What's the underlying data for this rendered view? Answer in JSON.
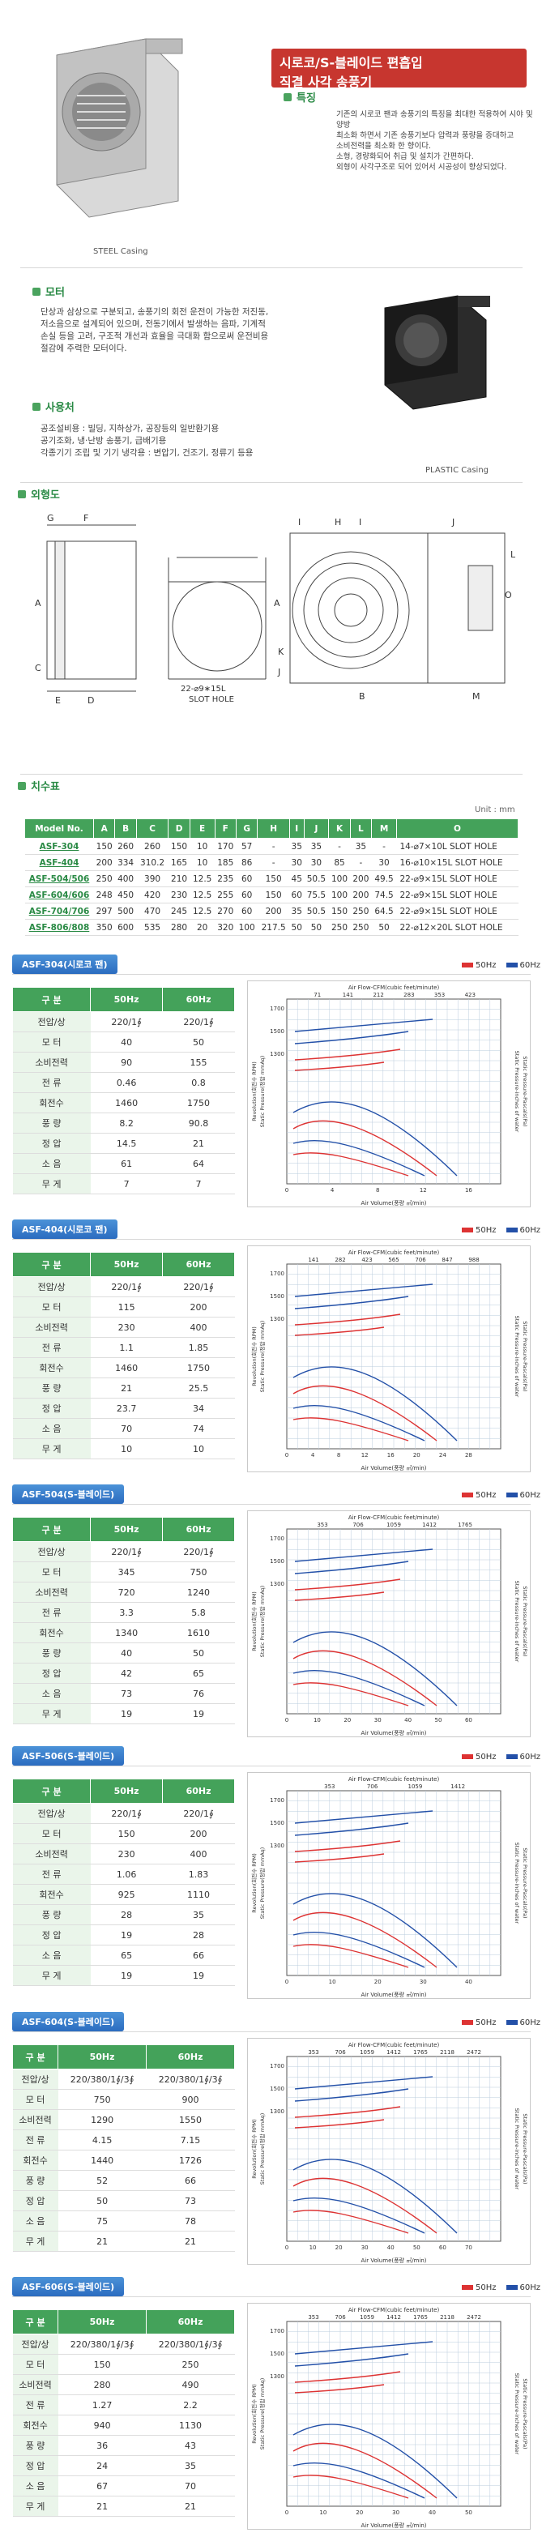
{
  "hero": {
    "title_line1": "시로코/S-블레이드 편흡입",
    "title_line2": "직결 사각 송풍기",
    "feature_head": "특징",
    "feature_text": [
      "기존의 시로코 팬과 송풍기의 특징을 최대한 적용하여 시야 및 양방",
      "최소화 하면서 기존 송풍기보다 압력과 풍량을 증대하고",
      "소비전력을 최소화 한 향이다.",
      "",
      "소형, 경량화되어 취급 및 설치가 간편하다.",
      "외형이 사각구조로 되어 있어서 시공성이 향상되었다."
    ],
    "steel_caption": "STEEL Casing",
    "plastic_caption": "PLASTIC Casing"
  },
  "motor": {
    "head": "모터",
    "text": [
      "단상과 삼상으로 구분되고, 송풍기의 회전 운전이 가능한 저진동,",
      "저소음으로 설계되어 있으며, 전동기에서 발생하는 음파, 기계적",
      "손실 등을 고려, 구조적 개선과 효율을 극대화 함으로써 운전비용",
      "절감에 주력한 모터이다."
    ]
  },
  "usage": {
    "head": "사용처",
    "text": [
      "공조설비용 : 빌딩, 지하상가, 공장등의 일반환기용",
      "공기조화, 냉·난방 송풍기, 급배기용",
      "각종기기 조립 및 기기 냉각용 : 변압기, 건조기, 정류기 등용"
    ]
  },
  "drawing": {
    "head": "외형도",
    "slot_label_line1": "22-⌀9∗15L",
    "slot_label_line2": "SLOT HOLE"
  },
  "dimensions": {
    "head": "치수표",
    "unit": "Unit : mm",
    "columns": [
      "Model No.",
      "A",
      "B",
      "C",
      "D",
      "E",
      "F",
      "G",
      "H",
      "I",
      "J",
      "K",
      "L",
      "M",
      "O"
    ],
    "rows": [
      [
        "ASF-304",
        "150",
        "260",
        "260",
        "150",
        "10",
        "170",
        "57",
        "-",
        "35",
        "35",
        "-",
        "35",
        "-",
        "14-⌀7×10L SLOT HOLE"
      ],
      [
        "ASF-404",
        "200",
        "334",
        "310.2",
        "165",
        "10",
        "185",
        "86",
        "-",
        "30",
        "30",
        "85",
        "-",
        "30",
        "16-⌀10×15L SLOT HOLE"
      ],
      [
        "ASF-504/506",
        "250",
        "400",
        "390",
        "210",
        "12.5",
        "235",
        "60",
        "150",
        "45",
        "50.5",
        "100",
        "200",
        "49.5",
        "22-⌀9×15L SLOT HOLE"
      ],
      [
        "ASF-604/606",
        "248",
        "450",
        "420",
        "230",
        "12.5",
        "255",
        "60",
        "150",
        "60",
        "75.5",
        "100",
        "200",
        "74.5",
        "22-⌀9×15L SLOT HOLE"
      ],
      [
        "ASF-704/706",
        "297",
        "500",
        "470",
        "245",
        "12.5",
        "270",
        "60",
        "200",
        "35",
        "50.5",
        "150",
        "250",
        "64.5",
        "22-⌀9×15L SLOT HOLE"
      ],
      [
        "ASF-806/808",
        "350",
        "600",
        "535",
        "280",
        "20",
        "320",
        "100",
        "217.5",
        "50",
        "50",
        "250",
        "250",
        "50",
        "22-⌀12×20L SLOT HOLE"
      ]
    ]
  },
  "legend": {
    "hz50": "50Hz",
    "hz60": "60Hz"
  },
  "perf_header": [
    "구 분",
    "50Hz",
    "60Hz"
  ],
  "models": [
    {
      "tab": "ASF-304(시로코 팬)",
      "rows": [
        [
          "전압/상",
          "220/1∮",
          "220/1∮"
        ],
        [
          "모 터",
          "40",
          "50"
        ],
        [
          "소비전력",
          "90",
          "155"
        ],
        [
          "전 류",
          "0.46",
          "0.8"
        ],
        [
          "회전수",
          "1460",
          "1750"
        ],
        [
          "풍 량",
          "8.2",
          "90.8"
        ],
        [
          "정 압",
          "14.5",
          "21"
        ],
        [
          "소 음",
          "61",
          "64"
        ],
        [
          "무 게",
          "7",
          "7"
        ]
      ],
      "top_axis": [
        "71",
        "141",
        "212",
        "283",
        "353",
        "423"
      ],
      "x_ticks": [
        "0",
        "4",
        "8",
        "12",
        "16"
      ],
      "y_ticks": [
        "1700",
        "1500",
        "1300"
      ]
    },
    {
      "tab": "ASF-404(시로코 팬)",
      "rows": [
        [
          "전압/상",
          "220/1∮",
          "220/1∮"
        ],
        [
          "모 터",
          "115",
          "200"
        ],
        [
          "소비전력",
          "230",
          "400"
        ],
        [
          "전 류",
          "1.1",
          "1.85"
        ],
        [
          "회전수",
          "1460",
          "1750"
        ],
        [
          "풍 량",
          "21",
          "25.5"
        ],
        [
          "정 압",
          "23.7",
          "34"
        ],
        [
          "소 음",
          "70",
          "74"
        ],
        [
          "무 게",
          "10",
          "10"
        ]
      ],
      "top_axis": [
        "141",
        "282",
        "423",
        "565",
        "706",
        "847",
        "988"
      ],
      "x_ticks": [
        "0",
        "4",
        "8",
        "12",
        "16",
        "20",
        "24",
        "28"
      ],
      "y_ticks": [
        "1700",
        "1500",
        "1300"
      ]
    },
    {
      "tab": "ASF-504(S-블레이드)",
      "rows": [
        [
          "전압/상",
          "220/1∮",
          "220/1∮"
        ],
        [
          "모 터",
          "345",
          "750"
        ],
        [
          "소비전력",
          "720",
          "1240"
        ],
        [
          "전 류",
          "3.3",
          "5.8"
        ],
        [
          "회전수",
          "1340",
          "1610"
        ],
        [
          "풍 량",
          "40",
          "50"
        ],
        [
          "정 압",
          "42",
          "65"
        ],
        [
          "소 음",
          "73",
          "76"
        ],
        [
          "무 게",
          "19",
          "19"
        ]
      ],
      "top_axis": [
        "353",
        "706",
        "1059",
        "1412",
        "1765"
      ],
      "x_ticks": [
        "0",
        "10",
        "20",
        "30",
        "40",
        "50",
        "60"
      ],
      "y_ticks": [
        "1700",
        "1500",
        "1300"
      ]
    },
    {
      "tab": "ASF-506(S-블레이드)",
      "rows": [
        [
          "전압/상",
          "220/1∮",
          "220/1∮"
        ],
        [
          "모 터",
          "150",
          "200"
        ],
        [
          "소비전력",
          "230",
          "400"
        ],
        [
          "전 류",
          "1.06",
          "1.83"
        ],
        [
          "회전수",
          "925",
          "1110"
        ],
        [
          "풍 량",
          "28",
          "35"
        ],
        [
          "정 압",
          "19",
          "28"
        ],
        [
          "소 음",
          "65",
          "66"
        ],
        [
          "무 게",
          "19",
          "19"
        ]
      ],
      "top_axis": [
        "353",
        "706",
        "1059",
        "1412"
      ],
      "x_ticks": [
        "0",
        "10",
        "20",
        "30",
        "40"
      ],
      "y_ticks": [
        "1700",
        "1500",
        "1300"
      ]
    },
    {
      "tab": "ASF-604(S-블레이드)",
      "rows": [
        [
          "전압/상",
          "220/380/1∮/3∮",
          "220/380/1∮/3∮"
        ],
        [
          "모 터",
          "750",
          "900"
        ],
        [
          "소비전력",
          "1290",
          "1550"
        ],
        [
          "전 류",
          "4.15",
          "7.15"
        ],
        [
          "회전수",
          "1440",
          "1726"
        ],
        [
          "풍 량",
          "52",
          "66"
        ],
        [
          "정 압",
          "50",
          "73"
        ],
        [
          "소 음",
          "75",
          "78"
        ],
        [
          "무 게",
          "21",
          "21"
        ]
      ],
      "top_axis": [
        "353",
        "706",
        "1059",
        "1412",
        "1765",
        "2118",
        "2472"
      ],
      "x_ticks": [
        "0",
        "10",
        "20",
        "30",
        "40",
        "50",
        "60",
        "70"
      ],
      "y_ticks": [
        "1700",
        "1500",
        "1300"
      ]
    },
    {
      "tab": "ASF-606(S-블레이드)",
      "rows": [
        [
          "전압/상",
          "220/380/1∮/3∮",
          "220/380/1∮/3∮"
        ],
        [
          "모 터",
          "150",
          "250"
        ],
        [
          "소비전력",
          "280",
          "490"
        ],
        [
          "전 류",
          "1.27",
          "2.2"
        ],
        [
          "회전수",
          "940",
          "1130"
        ],
        [
          "풍 량",
          "36",
          "43"
        ],
        [
          "정 압",
          "24",
          "35"
        ],
        [
          "소 음",
          "67",
          "70"
        ],
        [
          "무 게",
          "21",
          "21"
        ]
      ],
      "top_axis": [
        "353",
        "706",
        "1059",
        "1412",
        "1765",
        "2118",
        "2472"
      ],
      "x_ticks": [
        "0",
        "10",
        "20",
        "30",
        "40",
        "50"
      ],
      "y_ticks": [
        "1700",
        "1500",
        "1300"
      ]
    }
  ],
  "chart_labels": {
    "top": "Air Flow-CFM(cubic feet/minute)",
    "bottom": "Air Volume(풍량 ㎥/min)",
    "left": "Revolution(회전수 RPM)",
    "left2": "Static Pressure(정압 mmAq)",
    "right": "Static Pressure-inches of water",
    "right2": "Static Pressure-Pascals(Pa)"
  }
}
